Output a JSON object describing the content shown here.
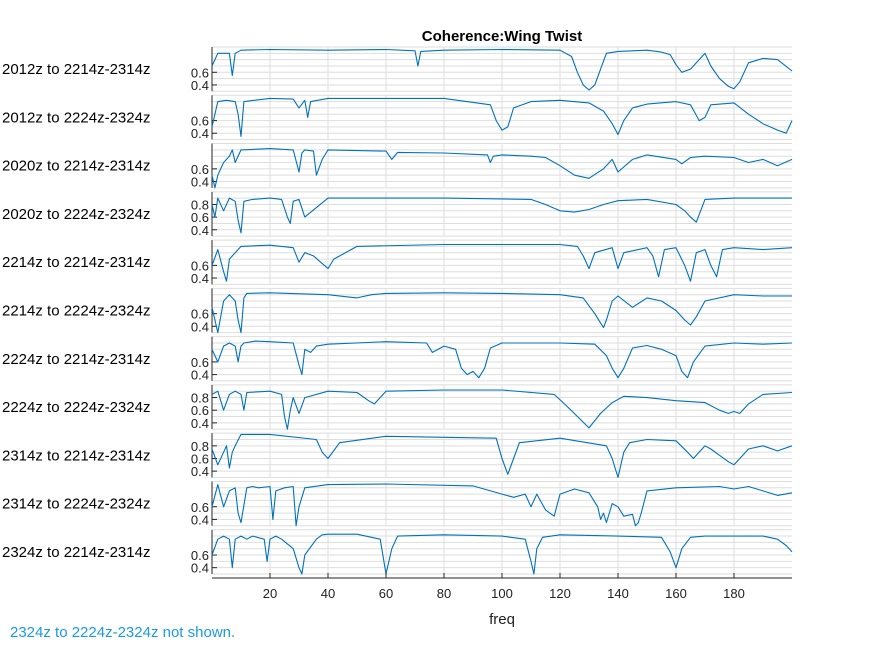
{
  "footer_note": "2324z to 2224z-2324z not shown.",
  "colors": {
    "line": "#0072BD",
    "grid": "#dedede",
    "axis": "#262626"
  },
  "chart_data": {
    "type": "line",
    "title": "Coherence:Wing Twist",
    "xlabel": "freq",
    "xlim": [
      0,
      200
    ],
    "xticks": [
      20,
      40,
      60,
      80,
      100,
      120,
      140,
      160,
      180
    ],
    "grid": true,
    "panels": [
      {
        "label": "2012z to 2214z-2314z",
        "ylim": [
          0.3,
          1.0
        ],
        "yticks": [
          0.4,
          0.6
        ],
        "x": [
          0,
          2,
          4,
          6,
          7,
          8,
          10,
          20,
          40,
          60,
          70,
          71,
          72,
          80,
          100,
          120,
          124,
          126,
          128,
          130,
          132,
          134,
          136,
          140,
          150,
          155,
          158,
          160,
          162,
          165,
          170,
          172,
          175,
          178,
          180,
          182,
          185,
          190,
          195,
          200
        ],
        "y": [
          0.7,
          0.9,
          0.9,
          0.9,
          0.55,
          0.9,
          0.95,
          0.96,
          0.95,
          0.96,
          0.94,
          0.7,
          0.93,
          0.95,
          0.96,
          0.95,
          0.85,
          0.6,
          0.4,
          0.32,
          0.4,
          0.65,
          0.9,
          0.93,
          0.95,
          0.92,
          0.88,
          0.72,
          0.6,
          0.65,
          0.9,
          0.7,
          0.5,
          0.38,
          0.34,
          0.45,
          0.75,
          0.82,
          0.8,
          0.62
        ]
      },
      {
        "label": "2012z to 2224z-2324z",
        "ylim": [
          0.3,
          1.0
        ],
        "yticks": [
          0.4,
          0.6
        ],
        "x": [
          0,
          2,
          5,
          8,
          9,
          10,
          11,
          20,
          28,
          30,
          32,
          33,
          34,
          40,
          60,
          80,
          96,
          98,
          100,
          102,
          104,
          110,
          120,
          130,
          135,
          138,
          140,
          142,
          145,
          150,
          160,
          165,
          168,
          170,
          172,
          180,
          185,
          190,
          195,
          198,
          200
        ],
        "y": [
          0.5,
          0.9,
          0.92,
          0.9,
          0.7,
          0.35,
          0.9,
          0.95,
          0.94,
          0.8,
          0.92,
          0.65,
          0.9,
          0.95,
          0.95,
          0.95,
          0.85,
          0.6,
          0.45,
          0.5,
          0.8,
          0.9,
          0.92,
          0.88,
          0.75,
          0.55,
          0.38,
          0.6,
          0.8,
          0.86,
          0.9,
          0.85,
          0.6,
          0.65,
          0.85,
          0.88,
          0.7,
          0.55,
          0.45,
          0.4,
          0.6
        ]
      },
      {
        "label": "2020z to 2214z-2314z",
        "ylim": [
          0.3,
          1.0
        ],
        "yticks": [
          0.4,
          0.6
        ],
        "x": [
          0,
          1,
          2,
          4,
          6,
          7,
          8,
          10,
          20,
          28,
          30,
          31,
          32,
          35,
          36,
          38,
          40,
          60,
          62,
          64,
          80,
          95,
          96,
          97,
          100,
          110,
          115,
          120,
          125,
          130,
          135,
          138,
          140,
          145,
          150,
          160,
          162,
          165,
          170,
          180,
          185,
          190,
          195,
          200
        ],
        "y": [
          0.5,
          0.3,
          0.5,
          0.7,
          0.8,
          0.9,
          0.7,
          0.9,
          0.92,
          0.9,
          0.55,
          0.85,
          0.9,
          0.88,
          0.5,
          0.75,
          0.9,
          0.88,
          0.75,
          0.86,
          0.85,
          0.82,
          0.7,
          0.8,
          0.82,
          0.8,
          0.78,
          0.65,
          0.5,
          0.45,
          0.6,
          0.75,
          0.55,
          0.75,
          0.82,
          0.75,
          0.68,
          0.78,
          0.8,
          0.78,
          0.7,
          0.75,
          0.65,
          0.75
        ]
      },
      {
        "label": "2020z to 2224z-2324z",
        "ylim": [
          0.3,
          1.0
        ],
        "yticks": [
          0.4,
          0.6,
          0.8
        ],
        "x": [
          0,
          1,
          2,
          4,
          6,
          8,
          9,
          10,
          11,
          14,
          20,
          24,
          26,
          27,
          28,
          30,
          32,
          40,
          80,
          110,
          115,
          120,
          125,
          130,
          135,
          140,
          150,
          160,
          163,
          165,
          167,
          170,
          180,
          190,
          200
        ],
        "y": [
          0.8,
          0.6,
          0.9,
          0.7,
          0.9,
          0.85,
          0.55,
          0.35,
          0.85,
          0.88,
          0.9,
          0.88,
          0.6,
          0.5,
          0.85,
          0.88,
          0.6,
          0.9,
          0.9,
          0.88,
          0.8,
          0.7,
          0.68,
          0.72,
          0.8,
          0.86,
          0.88,
          0.8,
          0.7,
          0.6,
          0.52,
          0.88,
          0.9,
          0.9,
          0.9
        ]
      },
      {
        "label": "2214z to 2214z-2314z",
        "ylim": [
          0.3,
          1.0
        ],
        "yticks": [
          0.4,
          0.6
        ],
        "x": [
          0,
          2,
          4,
          5,
          6,
          8,
          10,
          20,
          28,
          30,
          32,
          35,
          40,
          42,
          50,
          80,
          120,
          126,
          128,
          130,
          132,
          138,
          140,
          142,
          150,
          152,
          154,
          156,
          160,
          163,
          165,
          167,
          170,
          172,
          174,
          176,
          180,
          190,
          200
        ],
        "y": [
          0.6,
          0.85,
          0.5,
          0.35,
          0.7,
          0.8,
          0.9,
          0.92,
          0.88,
          0.65,
          0.8,
          0.75,
          0.55,
          0.7,
          0.9,
          0.93,
          0.93,
          0.9,
          0.75,
          0.55,
          0.8,
          0.88,
          0.55,
          0.8,
          0.88,
          0.75,
          0.42,
          0.85,
          0.88,
          0.6,
          0.35,
          0.8,
          0.85,
          0.6,
          0.42,
          0.85,
          0.88,
          0.85,
          0.88
        ]
      },
      {
        "label": "2214z to 2224z-2324z",
        "ylim": [
          0.3,
          1.0
        ],
        "yticks": [
          0.4,
          0.6
        ],
        "x": [
          0,
          2,
          4,
          6,
          8,
          9,
          10,
          11,
          12,
          20,
          40,
          50,
          55,
          60,
          80,
          100,
          120,
          128,
          132,
          134,
          135,
          136,
          138,
          140,
          145,
          150,
          155,
          160,
          163,
          165,
          167,
          170,
          180,
          190,
          200
        ],
        "y": [
          0.7,
          0.3,
          0.8,
          0.9,
          0.8,
          0.5,
          0.3,
          0.85,
          0.92,
          0.93,
          0.9,
          0.85,
          0.9,
          0.92,
          0.93,
          0.92,
          0.9,
          0.85,
          0.6,
          0.45,
          0.38,
          0.5,
          0.8,
          0.88,
          0.7,
          0.85,
          0.8,
          0.65,
          0.5,
          0.42,
          0.55,
          0.8,
          0.9,
          0.88,
          0.88
        ]
      },
      {
        "label": "2224z to 2214z-2314z",
        "ylim": [
          0.3,
          1.0
        ],
        "yticks": [
          0.4,
          0.6
        ],
        "x": [
          0,
          2,
          4,
          6,
          8,
          9,
          10,
          11,
          15,
          20,
          28,
          30,
          31,
          32,
          34,
          36,
          40,
          60,
          74,
          76,
          80,
          84,
          86,
          88,
          90,
          92,
          94,
          96,
          100,
          120,
          132,
          136,
          138,
          140,
          142,
          145,
          150,
          155,
          160,
          162,
          164,
          166,
          170,
          180,
          190,
          200
        ],
        "y": [
          0.8,
          0.6,
          0.85,
          0.9,
          0.85,
          0.6,
          0.85,
          0.9,
          0.93,
          0.92,
          0.9,
          0.55,
          0.4,
          0.8,
          0.75,
          0.85,
          0.88,
          0.92,
          0.9,
          0.75,
          0.85,
          0.8,
          0.5,
          0.4,
          0.45,
          0.35,
          0.5,
          0.82,
          0.9,
          0.9,
          0.88,
          0.7,
          0.5,
          0.35,
          0.5,
          0.82,
          0.86,
          0.8,
          0.7,
          0.45,
          0.35,
          0.6,
          0.85,
          0.9,
          0.88,
          0.9
        ]
      },
      {
        "label": "2224z to 2224z-2324z",
        "ylim": [
          0.3,
          1.0
        ],
        "yticks": [
          0.4,
          0.6,
          0.8
        ],
        "x": [
          0,
          2,
          4,
          6,
          8,
          10,
          11,
          12,
          20,
          24,
          25,
          26,
          27,
          28,
          30,
          32,
          40,
          50,
          54,
          56,
          60,
          80,
          100,
          118,
          122,
          126,
          130,
          134,
          138,
          142,
          150,
          160,
          170,
          175,
          178,
          180,
          182,
          185,
          190,
          200
        ],
        "y": [
          0.85,
          0.9,
          0.6,
          0.85,
          0.9,
          0.85,
          0.6,
          0.88,
          0.9,
          0.85,
          0.5,
          0.3,
          0.6,
          0.8,
          0.55,
          0.8,
          0.9,
          0.88,
          0.75,
          0.7,
          0.9,
          0.92,
          0.92,
          0.85,
          0.68,
          0.5,
          0.32,
          0.55,
          0.72,
          0.82,
          0.8,
          0.75,
          0.72,
          0.6,
          0.55,
          0.58,
          0.55,
          0.7,
          0.85,
          0.88
        ]
      },
      {
        "label": "2314z to 2214z-2314z",
        "ylim": [
          0.3,
          1.0
        ],
        "yticks": [
          0.4,
          0.6,
          0.8
        ],
        "x": [
          0,
          2,
          4,
          5,
          6,
          7,
          8,
          10,
          20,
          36,
          38,
          40,
          44,
          60,
          98,
          100,
          102,
          104,
          106,
          120,
          136,
          138,
          140,
          141,
          142,
          144,
          150,
          160,
          164,
          166,
          170,
          172,
          175,
          178,
          180,
          182,
          185,
          190,
          195,
          200
        ],
        "y": [
          0.75,
          0.5,
          0.7,
          0.8,
          0.45,
          0.7,
          0.8,
          0.98,
          0.98,
          0.9,
          0.7,
          0.6,
          0.85,
          0.95,
          0.92,
          0.6,
          0.35,
          0.6,
          0.85,
          0.92,
          0.8,
          0.6,
          0.3,
          0.5,
          0.7,
          0.85,
          0.9,
          0.88,
          0.7,
          0.6,
          0.8,
          0.75,
          0.65,
          0.55,
          0.5,
          0.6,
          0.75,
          0.8,
          0.72,
          0.8
        ]
      },
      {
        "label": "2314z to 2224z-2324z",
        "ylim": [
          0.3,
          1.0
        ],
        "yticks": [
          0.4,
          0.6
        ],
        "x": [
          0,
          2,
          4,
          6,
          8,
          9,
          10,
          12,
          14,
          16,
          20,
          21,
          22,
          25,
          28,
          29,
          30,
          32,
          40,
          60,
          90,
          100,
          104,
          108,
          110,
          112,
          115,
          118,
          120,
          125,
          130,
          133,
          134,
          135,
          136,
          137,
          138,
          140,
          142,
          145,
          146,
          147,
          148,
          150,
          160,
          175,
          180,
          185,
          190,
          195,
          200
        ],
        "y": [
          0.6,
          0.95,
          0.6,
          0.85,
          0.9,
          0.5,
          0.35,
          0.9,
          0.92,
          0.9,
          0.92,
          0.4,
          0.85,
          0.9,
          0.92,
          0.3,
          0.6,
          0.9,
          0.95,
          0.96,
          0.93,
          0.8,
          0.75,
          0.8,
          0.6,
          0.8,
          0.55,
          0.45,
          0.8,
          0.88,
          0.82,
          0.6,
          0.4,
          0.5,
          0.35,
          0.5,
          0.65,
          0.6,
          0.45,
          0.48,
          0.3,
          0.35,
          0.5,
          0.85,
          0.9,
          0.92,
          0.88,
          0.92,
          0.85,
          0.78,
          0.82
        ]
      },
      {
        "label": "2324z to 2214z-2314z",
        "ylim": [
          0.3,
          1.0
        ],
        "yticks": [
          0.4,
          0.6
        ],
        "x": [
          0,
          2,
          4,
          6,
          7,
          8,
          10,
          12,
          14,
          18,
          19,
          20,
          22,
          24,
          28,
          30,
          31,
          32,
          36,
          38,
          40,
          50,
          58,
          60,
          62,
          64,
          80,
          100,
          108,
          110,
          111,
          112,
          114,
          120,
          140,
          155,
          158,
          160,
          162,
          165,
          170,
          180,
          190,
          195,
          198,
          200
        ],
        "y": [
          0.6,
          0.85,
          0.9,
          0.85,
          0.4,
          0.85,
          0.9,
          0.85,
          0.9,
          0.85,
          0.5,
          0.85,
          0.9,
          0.85,
          0.7,
          0.4,
          0.3,
          0.6,
          0.85,
          0.92,
          0.93,
          0.93,
          0.85,
          0.3,
          0.7,
          0.9,
          0.92,
          0.9,
          0.85,
          0.5,
          0.3,
          0.7,
          0.88,
          0.92,
          0.9,
          0.88,
          0.65,
          0.4,
          0.7,
          0.88,
          0.9,
          0.9,
          0.9,
          0.85,
          0.75,
          0.65
        ]
      }
    ]
  }
}
